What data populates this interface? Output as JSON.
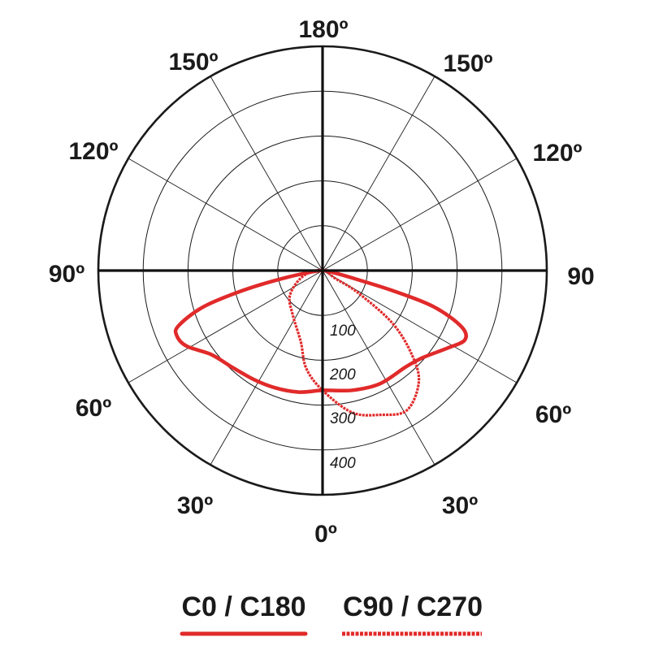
{
  "chart_data": {
    "type": "polar",
    "angle_convention": "0 at bottom, 180 at top; negative = left half, positive = right half",
    "angle_labels": {
      "top": "180º",
      "upper_left": "150º",
      "upper_right": "150º",
      "mid_upper_left": "120º",
      "mid_upper_right": "120º",
      "left": "90º",
      "right": "90",
      "lower_left": "60º",
      "lower_right": "60º",
      "bottom_left": "30º",
      "bottom_right": "30º",
      "bottom": "0º"
    },
    "radial_ticks": [
      100,
      200,
      300,
      400
    ],
    "radial_tick_labels": [
      "100",
      "200",
      "300",
      "400"
    ],
    "rmax": 500,
    "ring_values": [
      100,
      200,
      300,
      400,
      500
    ],
    "spoke_step_deg": 30,
    "grid": true,
    "legend_placement": "bottom",
    "series": [
      {
        "name": "C0 / C180",
        "style": "solid",
        "color": "#e12a2a",
        "points": [
          [
            -90,
            0
          ],
          [
            -85,
            15
          ],
          [
            -79,
            87
          ],
          [
            -76,
            182
          ],
          [
            -73,
            279
          ],
          [
            -69,
            344
          ],
          [
            -66,
            356
          ],
          [
            -61,
            347
          ],
          [
            -53,
            311
          ],
          [
            -43,
            295
          ],
          [
            -32,
            287
          ],
          [
            -22,
            282
          ],
          [
            -11,
            276
          ],
          [
            0,
            267
          ],
          [
            14,
            275
          ],
          [
            27,
            283
          ],
          [
            41,
            284
          ],
          [
            49,
            296
          ],
          [
            58,
            327
          ],
          [
            64,
            353
          ],
          [
            68,
            334
          ],
          [
            72,
            260
          ],
          [
            74,
            162
          ],
          [
            76,
            67
          ],
          [
            82,
            15
          ],
          [
            90,
            0
          ]
        ]
      },
      {
        "name": "C90 / C270",
        "style": "dotted",
        "color": "#e12a2a",
        "points": [
          [
            0,
            0
          ],
          [
            -74,
            45
          ],
          [
            -53,
            91
          ],
          [
            -34,
            119
          ],
          [
            -17,
            166
          ],
          [
            -9.5,
            221
          ],
          [
            0,
            267
          ],
          [
            11.7,
            323
          ],
          [
            21.6,
            346
          ],
          [
            31,
            364
          ],
          [
            40.7,
            329
          ],
          [
            46.6,
            275
          ],
          [
            53,
            195
          ],
          [
            58,
            92
          ],
          [
            58,
            34
          ]
        ]
      }
    ]
  }
}
